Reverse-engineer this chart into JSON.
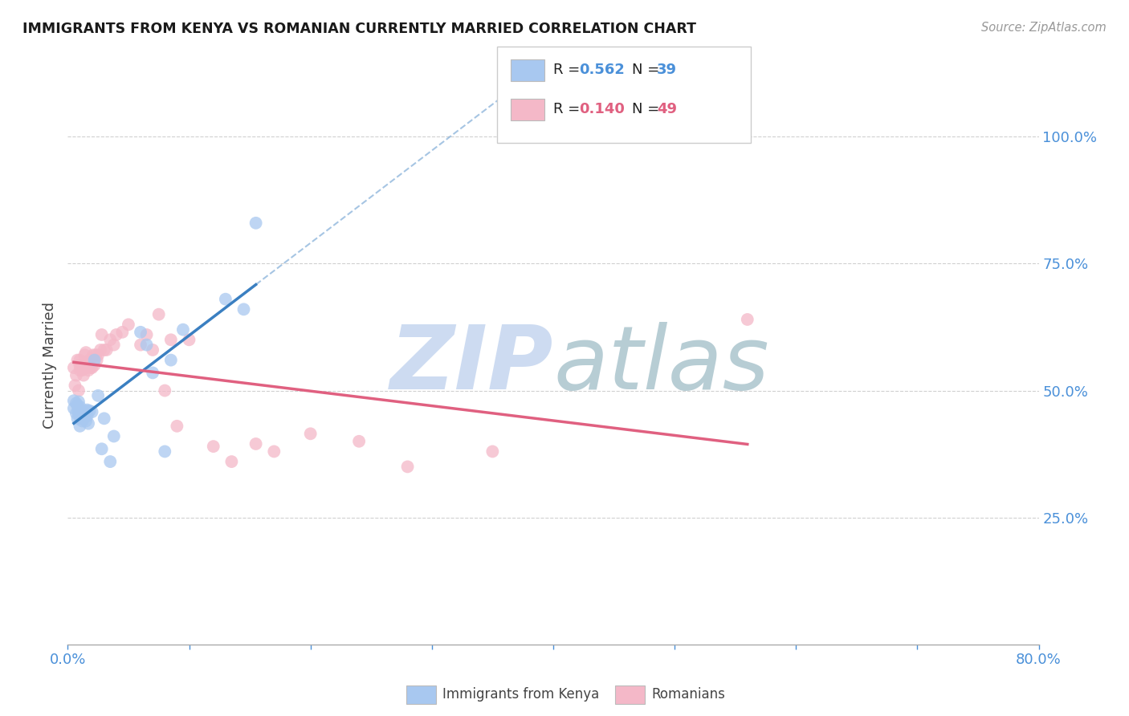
{
  "title": "IMMIGRANTS FROM KENYA VS ROMANIAN CURRENTLY MARRIED CORRELATION CHART",
  "source": "Source: ZipAtlas.com",
  "ylabel": "Currently Married",
  "yticks": [
    0.0,
    0.25,
    0.5,
    0.75,
    1.0
  ],
  "ytick_labels": [
    "",
    "25.0%",
    "50.0%",
    "75.0%",
    "100.0%"
  ],
  "xlim": [
    0.0,
    0.8
  ],
  "ylim": [
    0.0,
    1.1
  ],
  "kenya_color": "#a8c8f0",
  "romanian_color": "#f4b8c8",
  "kenya_line_color": "#3a7fc1",
  "romanian_line_color": "#e06080",
  "kenya_x": [
    0.005,
    0.005,
    0.007,
    0.007,
    0.008,
    0.008,
    0.009,
    0.009,
    0.009,
    0.01,
    0.01,
    0.01,
    0.01,
    0.012,
    0.012,
    0.013,
    0.014,
    0.015,
    0.015,
    0.016,
    0.016,
    0.017,
    0.018,
    0.02,
    0.022,
    0.025,
    0.028,
    0.03,
    0.035,
    0.038,
    0.06,
    0.065,
    0.07,
    0.08,
    0.085,
    0.095,
    0.13,
    0.145,
    0.155
  ],
  "kenya_y": [
    0.465,
    0.48,
    0.455,
    0.475,
    0.445,
    0.47,
    0.455,
    0.462,
    0.478,
    0.43,
    0.448,
    0.458,
    0.468,
    0.44,
    0.452,
    0.445,
    0.455,
    0.44,
    0.46,
    0.45,
    0.462,
    0.435,
    0.46,
    0.458,
    0.56,
    0.49,
    0.385,
    0.445,
    0.36,
    0.41,
    0.615,
    0.59,
    0.535,
    0.38,
    0.56,
    0.62,
    0.68,
    0.66,
    0.83
  ],
  "romanian_x": [
    0.005,
    0.006,
    0.007,
    0.008,
    0.009,
    0.01,
    0.01,
    0.01,
    0.012,
    0.013,
    0.014,
    0.015,
    0.015,
    0.016,
    0.017,
    0.018,
    0.019,
    0.02,
    0.021,
    0.022,
    0.023,
    0.024,
    0.025,
    0.027,
    0.028,
    0.03,
    0.032,
    0.035,
    0.038,
    0.04,
    0.045,
    0.05,
    0.06,
    0.065,
    0.07,
    0.075,
    0.08,
    0.085,
    0.09,
    0.1,
    0.12,
    0.135,
    0.155,
    0.17,
    0.2,
    0.24,
    0.28,
    0.35,
    0.56
  ],
  "romanian_y": [
    0.545,
    0.51,
    0.53,
    0.56,
    0.5,
    0.54,
    0.56,
    0.55,
    0.54,
    0.53,
    0.57,
    0.545,
    0.575,
    0.555,
    0.54,
    0.56,
    0.545,
    0.545,
    0.57,
    0.55,
    0.57,
    0.56,
    0.57,
    0.58,
    0.61,
    0.58,
    0.58,
    0.6,
    0.59,
    0.61,
    0.615,
    0.63,
    0.59,
    0.61,
    0.58,
    0.65,
    0.5,
    0.6,
    0.43,
    0.6,
    0.39,
    0.36,
    0.395,
    0.38,
    0.415,
    0.4,
    0.35,
    0.38,
    0.64
  ],
  "background_color": "#ffffff",
  "grid_color": "#d0d0d0",
  "watermark_zip": "ZIP",
  "watermark_atlas": "atlas",
  "watermark_color_zip": "#c8d8f0",
  "watermark_color_atlas": "#b0c8d0",
  "legend_entries": [
    {
      "color": "#a8c8f0",
      "R": "0.562",
      "N": "39",
      "value_color": "#4a90d9"
    },
    {
      "color": "#f4b8c8",
      "R": "0.140",
      "N": "49",
      "value_color": "#e06080"
    }
  ]
}
